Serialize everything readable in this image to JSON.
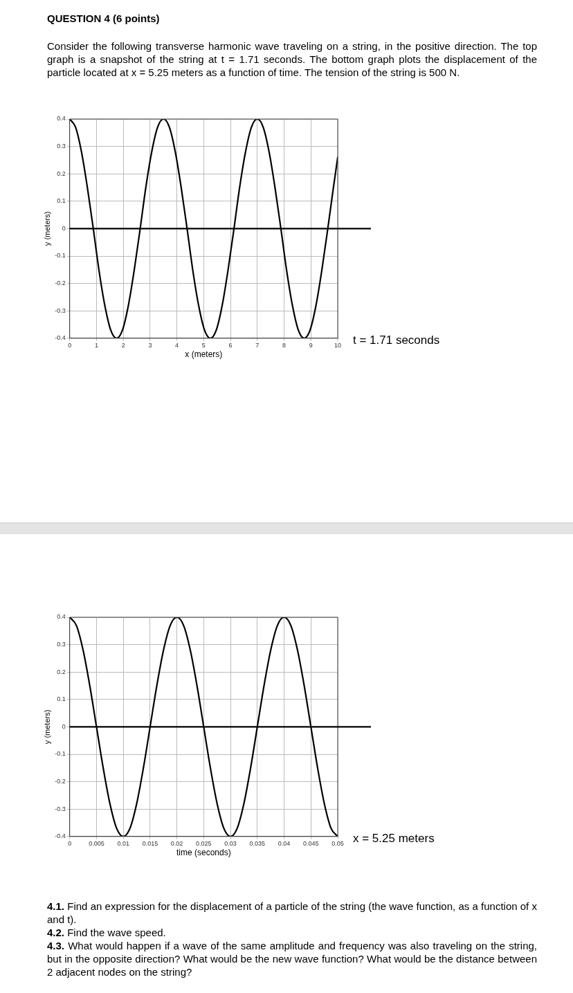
{
  "chart_data": [
    {
      "type": "line",
      "title": "QUESTION 4 (6 points)",
      "subtitle": "Consider the following transverse harmonic wave traveling on a string, in the positive direction. The top graph is a snapshot of the string at t = 1.71 seconds. The bottom graph plots the displacement of the particle located at x = 5.25 meters as a function of time. The tension of the string is 500 N.",
      "xlabel": "x (meters)",
      "ylabel": "y (meters)",
      "annotations": [
        "t = 1.71 seconds"
      ],
      "x": [
        0,
        0.22,
        0.44,
        0.66,
        0.88,
        1.09,
        1.31,
        1.53,
        1.75,
        1.97,
        2.19,
        2.41,
        2.63,
        2.84,
        3.06,
        3.28,
        3.5,
        3.72,
        3.94,
        4.16,
        4.38,
        4.59,
        4.81,
        5.03,
        5.25,
        5.47,
        5.69,
        5.91,
        6.13,
        6.34,
        6.56,
        6.78,
        7,
        7.22,
        7.44,
        7.66,
        7.88,
        8.09,
        8.31,
        8.53,
        8.75,
        8.97,
        9.19,
        9.41,
        9.63,
        9.84,
        10
      ],
      "series": [
        {
          "color": "#000000",
          "values": [
            0.4,
            0.37,
            0.28,
            0.15,
            0,
            -0.15,
            -0.28,
            -0.37,
            -0.4,
            -0.37,
            -0.28,
            -0.15,
            0,
            0.15,
            0.28,
            0.37,
            0.4,
            0.37,
            0.28,
            0.15,
            0,
            -0.15,
            -0.28,
            -0.37,
            -0.4,
            -0.37,
            -0.28,
            -0.15,
            0,
            0.15,
            0.28,
            0.37,
            0.4,
            0.37,
            0.28,
            0.15,
            0,
            -0.15,
            -0.28,
            -0.37,
            -0.4,
            -0.37,
            -0.28,
            -0.15,
            0,
            0.15,
            0.26
          ]
        }
      ],
      "xlim": [
        0,
        10
      ],
      "xticks": [
        0,
        1,
        2,
        3,
        4,
        5,
        6,
        7,
        8,
        9,
        10
      ],
      "ylim": [
        -0.4,
        0.4
      ],
      "yticks": [
        -0.4,
        -0.3,
        -0.2,
        -0.1,
        0,
        0.1,
        0.2,
        0.3,
        0.4
      ],
      "ref_lines": [
        {
          "axis": "y",
          "value": 0,
          "color": "#000000"
        }
      ],
      "grid": true,
      "marker": "none",
      "line_style": "solid"
    },
    {
      "type": "line",
      "xlabel": "time (seconds)",
      "ylabel": "y (meters)",
      "annotations": [
        "x = 5.25 meters",
        "4.1. Find an expression for the displacement of a particle of the string (the wave function, as a function of x and t).",
        "4.2. Find the wave speed.",
        "4.3. What would happen if a wave of the same amplitude and frequency was also traveling on the string, but in the opposite direction? What would be the new wave function? What would be the distance between 2 adjacent nodes on the string?"
      ],
      "x": [
        0,
        0.00125,
        0.0025,
        0.00375,
        0.005,
        0.00625,
        0.0075,
        0.00875,
        0.01,
        0.01125,
        0.0125,
        0.01375,
        0.015,
        0.01625,
        0.0175,
        0.01875,
        0.02,
        0.02125,
        0.0225,
        0.02375,
        0.025,
        0.02625,
        0.0275,
        0.02875,
        0.03,
        0.03125,
        0.0325,
        0.03375,
        0.035,
        0.03625,
        0.0375,
        0.03875,
        0.04,
        0.04125,
        0.0425,
        0.04375,
        0.045,
        0.04625,
        0.0475,
        0.04875,
        0.05
      ],
      "series": [
        {
          "color": "#000000",
          "values": [
            0.4,
            0.37,
            0.28,
            0.15,
            0,
            -0.15,
            -0.28,
            -0.37,
            -0.4,
            -0.37,
            -0.28,
            -0.15,
            0,
            0.15,
            0.28,
            0.37,
            0.4,
            0.37,
            0.28,
            0.15,
            0,
            -0.15,
            -0.28,
            -0.37,
            -0.4,
            -0.37,
            -0.28,
            -0.15,
            0,
            0.15,
            0.28,
            0.37,
            0.4,
            0.37,
            0.28,
            0.15,
            0,
            -0.15,
            -0.28,
            -0.37,
            -0.4
          ]
        }
      ],
      "xlim": [
        0,
        0.05
      ],
      "xticks": [
        0,
        0.005,
        0.01,
        0.015,
        0.02,
        0.025,
        0.03,
        0.035,
        0.04,
        0.045,
        0.05
      ],
      "ylim": [
        -0.4,
        0.4
      ],
      "yticks": [
        -0.4,
        -0.3,
        -0.2,
        -0.1,
        0,
        0.1,
        0.2,
        0.3,
        0.4
      ],
      "ref_lines": [
        {
          "axis": "y",
          "value": 0,
          "color": "#000000"
        }
      ],
      "grid": true,
      "marker": "none",
      "line_style": "solid"
    }
  ]
}
